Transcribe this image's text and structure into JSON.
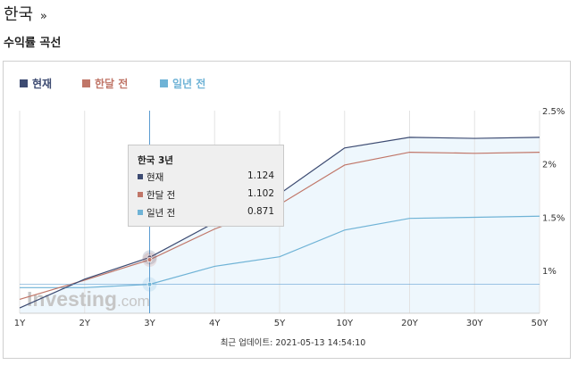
{
  "page": {
    "title": "한국",
    "title_suffix": "»",
    "section_title": "수익률 곡선"
  },
  "watermark": {
    "main": "Investing",
    "suffix": ".com"
  },
  "colors": {
    "current": "#3d4b72",
    "month_ago": "#c07668",
    "year_ago": "#6fb3d6",
    "area_fill": "#eef7fd",
    "crosshair": "#5b9bd0"
  },
  "tooltip": {
    "title": "한국 3년",
    "rows": [
      {
        "label": "현재",
        "value": "1.124"
      },
      {
        "label": "한달 전",
        "value": "1.102"
      },
      {
        "label": "일년 전",
        "value": "0.871"
      }
    ]
  },
  "update": {
    "label": "최근 업데이트:",
    "timestamp": "2021-05-13 14:54:10"
  },
  "chart_data": {
    "type": "line",
    "categories": [
      "1Y",
      "2Y",
      "3Y",
      "4Y",
      "5Y",
      "10Y",
      "20Y",
      "30Y",
      "50Y"
    ],
    "series": [
      {
        "name": "현재",
        "values": [
          0.65,
          0.92,
          1.124,
          1.45,
          1.72,
          2.15,
          2.25,
          2.24,
          2.25
        ],
        "color": "#3d4b72"
      },
      {
        "name": "한달 전",
        "values": [
          0.73,
          0.91,
          1.102,
          1.39,
          1.62,
          1.99,
          2.11,
          2.1,
          2.11
        ],
        "color": "#c07668"
      },
      {
        "name": "일년 전",
        "values": [
          0.84,
          0.84,
          0.871,
          1.04,
          1.13,
          1.38,
          1.49,
          1.5,
          1.51
        ],
        "color": "#6fb3d6"
      }
    ],
    "y_ticks": [
      "1%",
      "1.5%",
      "2%",
      "2.5%"
    ],
    "ylim": [
      0.6,
      2.5
    ],
    "highlighted_category": "3Y",
    "crosshair_value": 0.871,
    "legend_position": "top-left",
    "grid": "vertical"
  }
}
